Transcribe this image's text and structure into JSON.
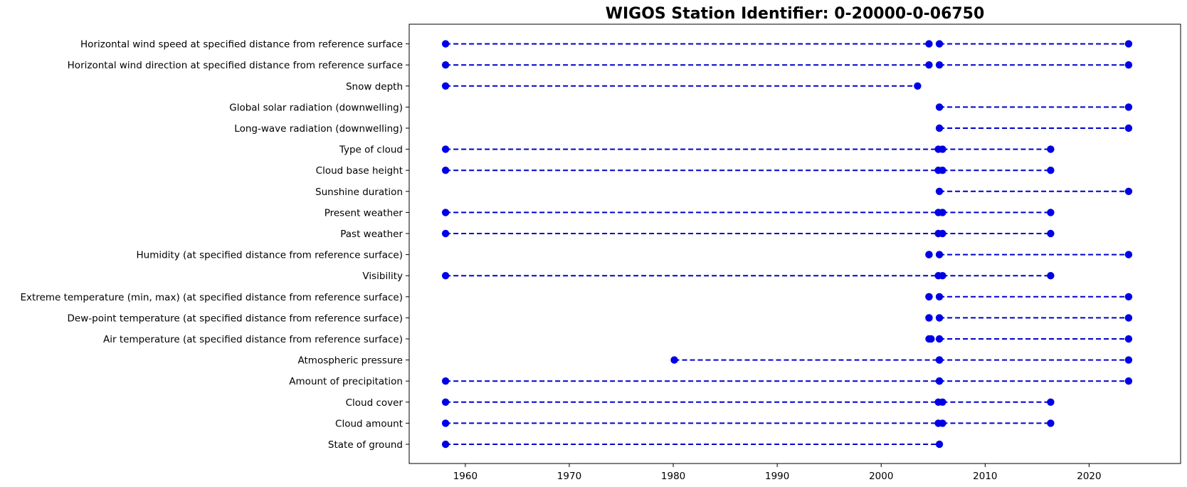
{
  "chart_data": {
    "type": "scatter",
    "title": "WIGOS Station Identifier: 0-20000-0-06750",
    "xlabel": "",
    "ylabel": "",
    "xlim": [
      1954.6,
      2028.8
    ],
    "x_ticks": [
      1960,
      1970,
      1980,
      1990,
      2000,
      2010,
      2020
    ],
    "grid": false,
    "legend": "none",
    "colors": {
      "line": "#0000cc",
      "marker": "#0000e6"
    },
    "categories": [
      "State of ground",
      "Cloud amount",
      "Cloud cover",
      "Amount of precipitation",
      "Atmospheric pressure",
      "Air temperature (at specified distance from reference surface)",
      "Dew-point temperature (at specified distance from reference surface)",
      "Extreme temperature (min, max) (at specified distance from reference surface)",
      "Visibility",
      "Humidity (at specified distance from reference surface)",
      "Past weather",
      "Present weather",
      "Sunshine duration",
      "Cloud base height",
      "Type of cloud",
      "Long-wave radiation (downwelling)",
      "Global solar radiation (downwelling)",
      "Snow depth",
      "Horizontal wind direction at specified distance from reference surface",
      "Horizontal wind speed at specified distance from reference surface"
    ],
    "series": [
      {
        "segments": [
          [
            1958.1,
            2005.6
          ]
        ]
      },
      {
        "segments": [
          [
            1958.1,
            2005.5
          ],
          [
            2005.9,
            2016.3
          ]
        ]
      },
      {
        "segments": [
          [
            1958.1,
            2005.5
          ],
          [
            2005.9,
            2016.3
          ]
        ]
      },
      {
        "segments": [
          [
            1958.1,
            2005.6
          ],
          [
            2005.6,
            2023.8
          ]
        ]
      },
      {
        "segments": [
          [
            1980.1,
            2005.6
          ],
          [
            2005.6,
            2023.8
          ]
        ]
      },
      {
        "segments": [
          [
            2004.6,
            2004.8
          ],
          [
            2005.6,
            2023.8
          ]
        ]
      },
      {
        "segments": [
          [
            2004.6,
            2004.6
          ],
          [
            2005.6,
            2023.8
          ]
        ]
      },
      {
        "segments": [
          [
            2004.6,
            2004.6
          ],
          [
            2005.6,
            2023.8
          ]
        ]
      },
      {
        "segments": [
          [
            1958.1,
            2005.5
          ],
          [
            2005.9,
            2016.3
          ]
        ]
      },
      {
        "segments": [
          [
            2004.6,
            2004.6
          ],
          [
            2005.6,
            2023.8
          ]
        ]
      },
      {
        "segments": [
          [
            1958.1,
            2005.5
          ],
          [
            2005.9,
            2016.3
          ]
        ]
      },
      {
        "segments": [
          [
            1958.1,
            2005.5
          ],
          [
            2005.9,
            2016.3
          ]
        ]
      },
      {
        "segments": [
          [
            2005.6,
            2023.8
          ]
        ]
      },
      {
        "segments": [
          [
            1958.1,
            2005.5
          ],
          [
            2005.9,
            2016.3
          ]
        ]
      },
      {
        "segments": [
          [
            1958.1,
            2005.5
          ],
          [
            2005.9,
            2016.3
          ]
        ]
      },
      {
        "segments": [
          [
            2005.6,
            2023.8
          ]
        ]
      },
      {
        "segments": [
          [
            2005.6,
            2023.8
          ]
        ]
      },
      {
        "segments": [
          [
            1958.1,
            2003.5
          ]
        ]
      },
      {
        "segments": [
          [
            1958.1,
            2004.6
          ],
          [
            2005.6,
            2023.8
          ]
        ]
      },
      {
        "segments": [
          [
            1958.1,
            2004.6
          ],
          [
            2005.6,
            2023.8
          ]
        ]
      }
    ]
  }
}
